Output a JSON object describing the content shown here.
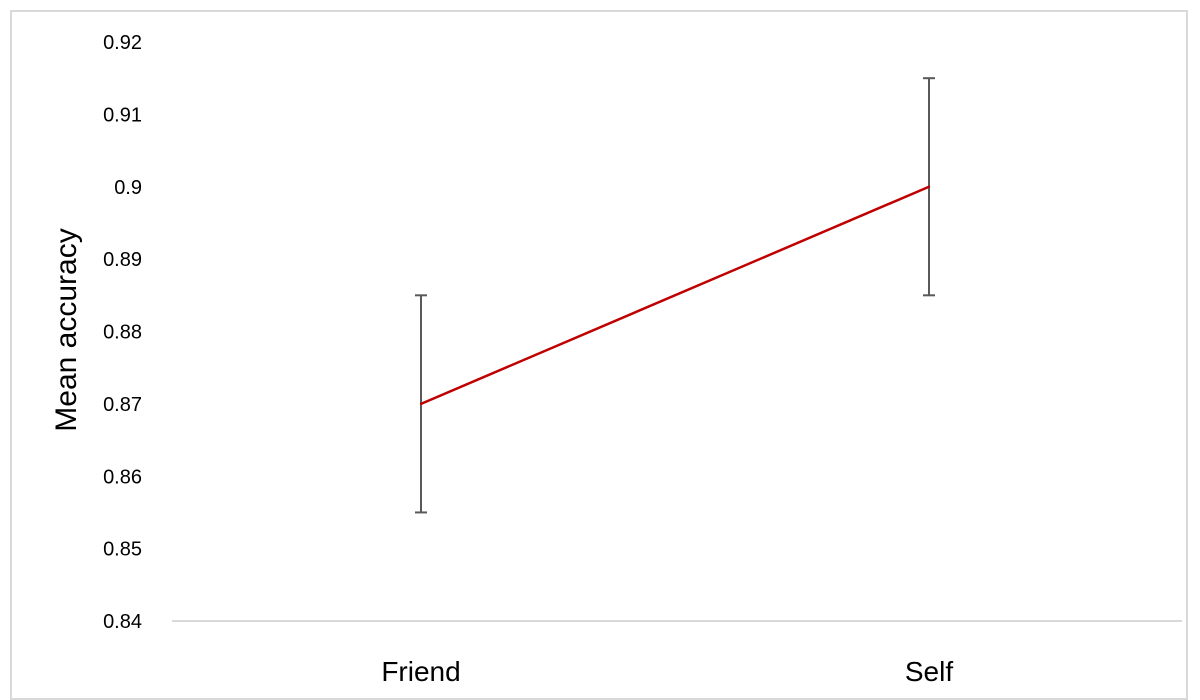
{
  "chart_data": {
    "type": "line",
    "categories": [
      "Friend",
      "Self"
    ],
    "series": [
      {
        "values": [
          0.87,
          0.9
        ],
        "error": [
          0.015,
          0.015
        ],
        "color": "#c00000"
      }
    ],
    "title": "",
    "xlabel": "",
    "ylabel": "Mean accuracy",
    "ylim": [
      0.84,
      0.92
    ],
    "yticks": [
      "0.84",
      "0.85",
      "0.86",
      "0.87",
      "0.88",
      "0.89",
      "0.9",
      "0.91",
      "0.92"
    ],
    "grid": false,
    "legend": "none",
    "axis_color": "#d9d9d9",
    "errorbar_color": "#595959"
  }
}
